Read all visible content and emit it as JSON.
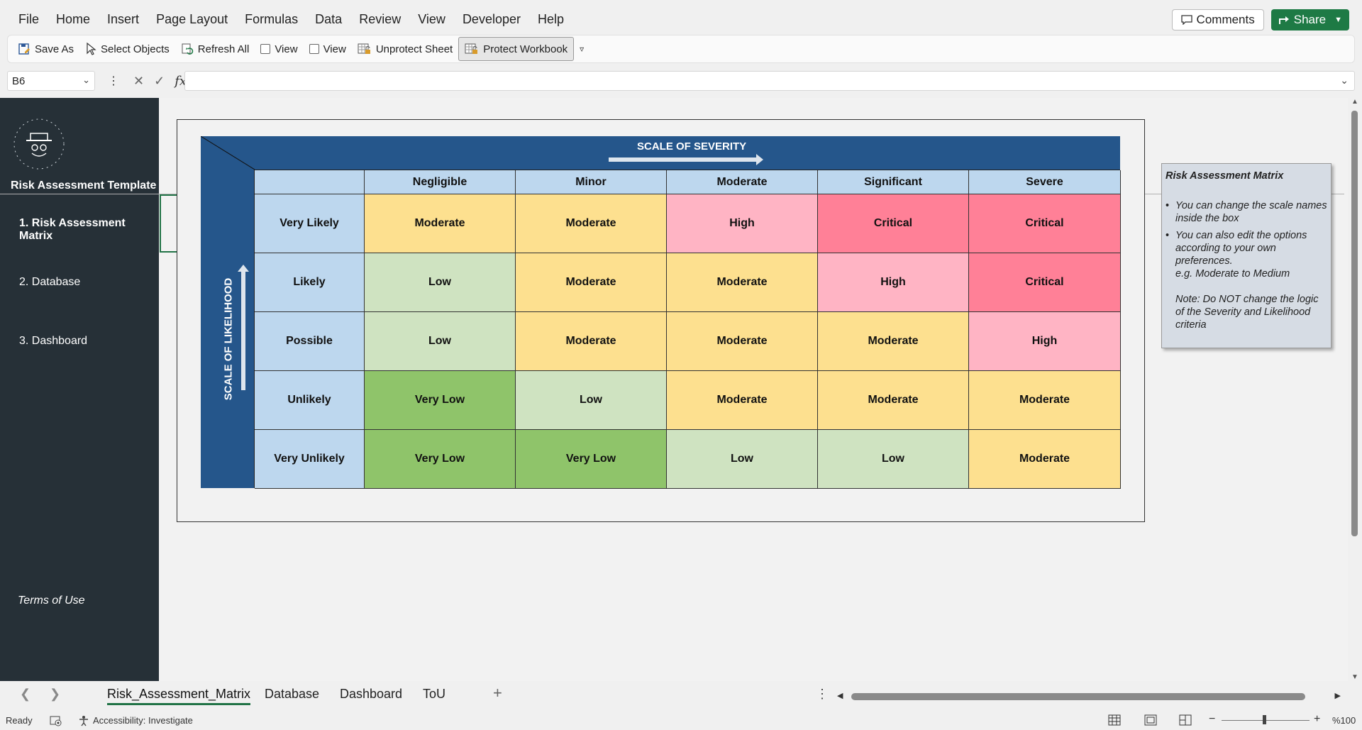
{
  "menu": {
    "items": [
      "File",
      "Home",
      "Insert",
      "Page Layout",
      "Formulas",
      "Data",
      "Review",
      "View",
      "Developer",
      "Help"
    ],
    "comments_label": "Comments",
    "share_label": "Share"
  },
  "ribbon": {
    "save_as": "Save As",
    "select_objects": "Select Objects",
    "refresh_all": "Refresh All",
    "view1": "View",
    "view2": "View",
    "unprotect_sheet": "Unprotect Sheet",
    "protect_workbook": "Protect Workbook"
  },
  "formula_bar": {
    "name_box": "B6",
    "formula": "",
    "fx": "fx"
  },
  "sidebar": {
    "title": "Risk Assessment Template",
    "nav": [
      "1. Risk Assessment Matrix",
      "2. Database",
      "3. Dashboard"
    ],
    "terms": "Terms of Use"
  },
  "matrix": {
    "severity_title": "SCALE OF SEVERITY",
    "likelihood_title": "SCALE OF LIKELIHOOD",
    "severity_levels": [
      "Negligible",
      "Minor",
      "Moderate",
      "Significant",
      "Severe"
    ],
    "rows": [
      {
        "label": "Very Likely",
        "cells": [
          "Moderate",
          "Moderate",
          "High",
          "Critical",
          "Critical"
        ]
      },
      {
        "label": "Likely",
        "cells": [
          "Low",
          "Moderate",
          "Moderate",
          "High",
          "Critical"
        ]
      },
      {
        "label": "Possible",
        "cells": [
          "Low",
          "Moderate",
          "Moderate",
          "Moderate",
          "High"
        ]
      },
      {
        "label": "Unlikely",
        "cells": [
          "Very Low",
          "Low",
          "Moderate",
          "Moderate",
          "Moderate"
        ]
      },
      {
        "label": "Very Unlikely",
        "cells": [
          "Very Low",
          "Very Low",
          "Low",
          "Low",
          "Moderate"
        ]
      }
    ],
    "colors": {
      "Very Low": "#8fc46a",
      "Low": "#cfe3c1",
      "Moderate": "#fde08f",
      "High": "#ffb4c4",
      "Critical": "#ff8097",
      "header": "#bdd7ee",
      "band": "#25568b"
    }
  },
  "note": {
    "title": "Risk Assessment Matrix",
    "bullet1": "You can change the scale names inside the box",
    "bullet2": "You can also edit the options according to your own preferences.",
    "example": "e.g. Moderate to Medium",
    "warning": "Note: Do NOT change the logic of the Severity and Likelihood criteria"
  },
  "tabs": [
    "Risk_Assessment_Matrix",
    "Database",
    "Dashboard",
    "ToU"
  ],
  "status": {
    "ready": "Ready",
    "accessibility": "Accessibility: Investigate",
    "zoom": "%100"
  }
}
